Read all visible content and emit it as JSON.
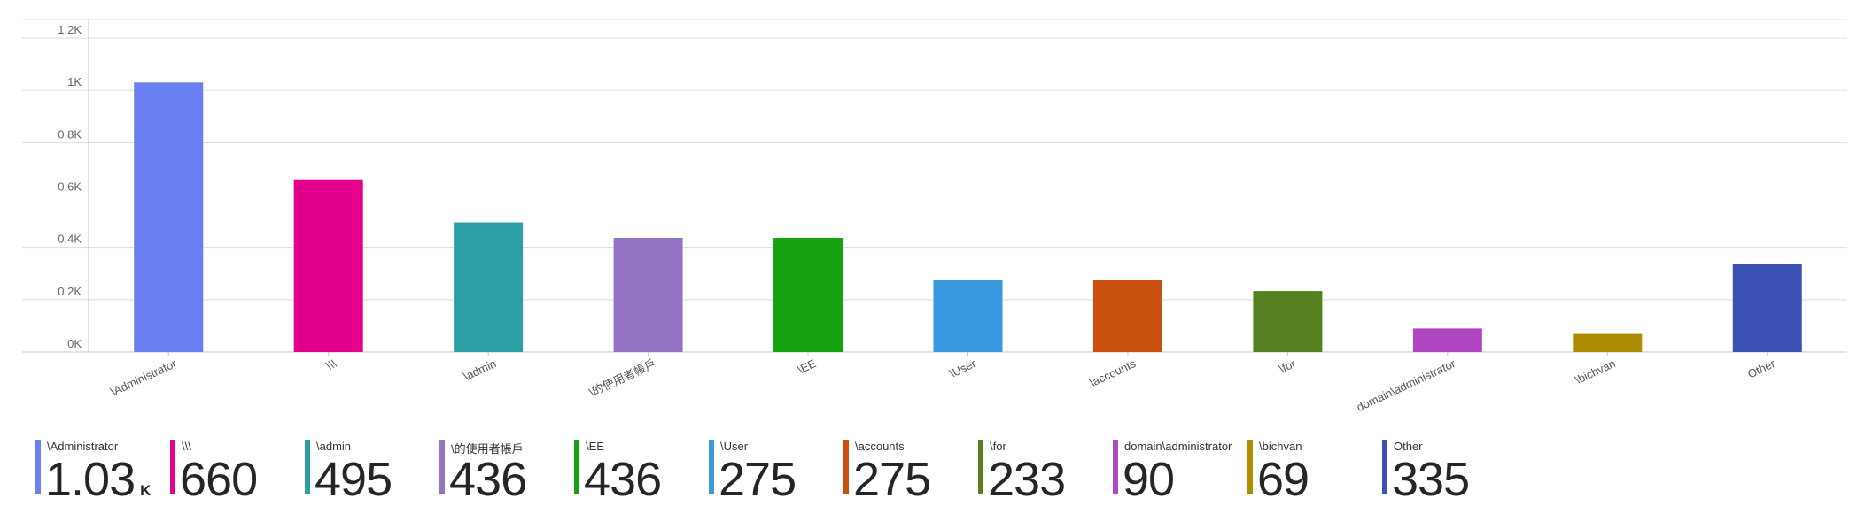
{
  "chart_data": {
    "type": "bar",
    "categories": [
      "\\Administrator",
      "\\\\\\",
      "\\admin",
      "\\的使用者帳戶",
      "\\EE",
      "\\User",
      "\\accounts",
      "\\for",
      "domain\\administrator",
      "\\bichvan",
      "Other"
    ],
    "values": [
      1030,
      660,
      495,
      436,
      436,
      275,
      275,
      233,
      90,
      69,
      335
    ],
    "colors": [
      "#6a7ff2",
      "#e3008c",
      "#2ba0a4",
      "#9473c2",
      "#13a10e",
      "#3b99df",
      "#ca5010",
      "#56801f",
      "#b146c2",
      "#ac8c00",
      "#3b52b4"
    ],
    "ylim": [
      0,
      1200
    ],
    "ytick_values": [
      0,
      200,
      400,
      600,
      800,
      1000,
      1200
    ],
    "ytick_labels": [
      "0K",
      "0.2K",
      "0.4K",
      "0.6K",
      "0.8K",
      "1K",
      "1.2K"
    ],
    "grid": true,
    "legend_position": "bottom",
    "title": "",
    "xlabel": "",
    "ylabel": ""
  },
  "legend": {
    "items": [
      {
        "label": "\\Administrator",
        "value": "1.03",
        "unit": "K"
      },
      {
        "label": "\\\\\\",
        "value": "660",
        "unit": ""
      },
      {
        "label": "\\admin",
        "value": "495",
        "unit": ""
      },
      {
        "label": "\\的使用者帳戶",
        "value": "436",
        "unit": ""
      },
      {
        "label": "\\EE",
        "value": "436",
        "unit": ""
      },
      {
        "label": "\\User",
        "value": "275",
        "unit": ""
      },
      {
        "label": "\\accounts",
        "value": "275",
        "unit": ""
      },
      {
        "label": "\\for",
        "value": "233",
        "unit": ""
      },
      {
        "label": "domain\\administrator",
        "value": "90",
        "unit": ""
      },
      {
        "label": "\\bichvan",
        "value": "69",
        "unit": ""
      },
      {
        "label": "Other",
        "value": "335",
        "unit": ""
      }
    ]
  }
}
